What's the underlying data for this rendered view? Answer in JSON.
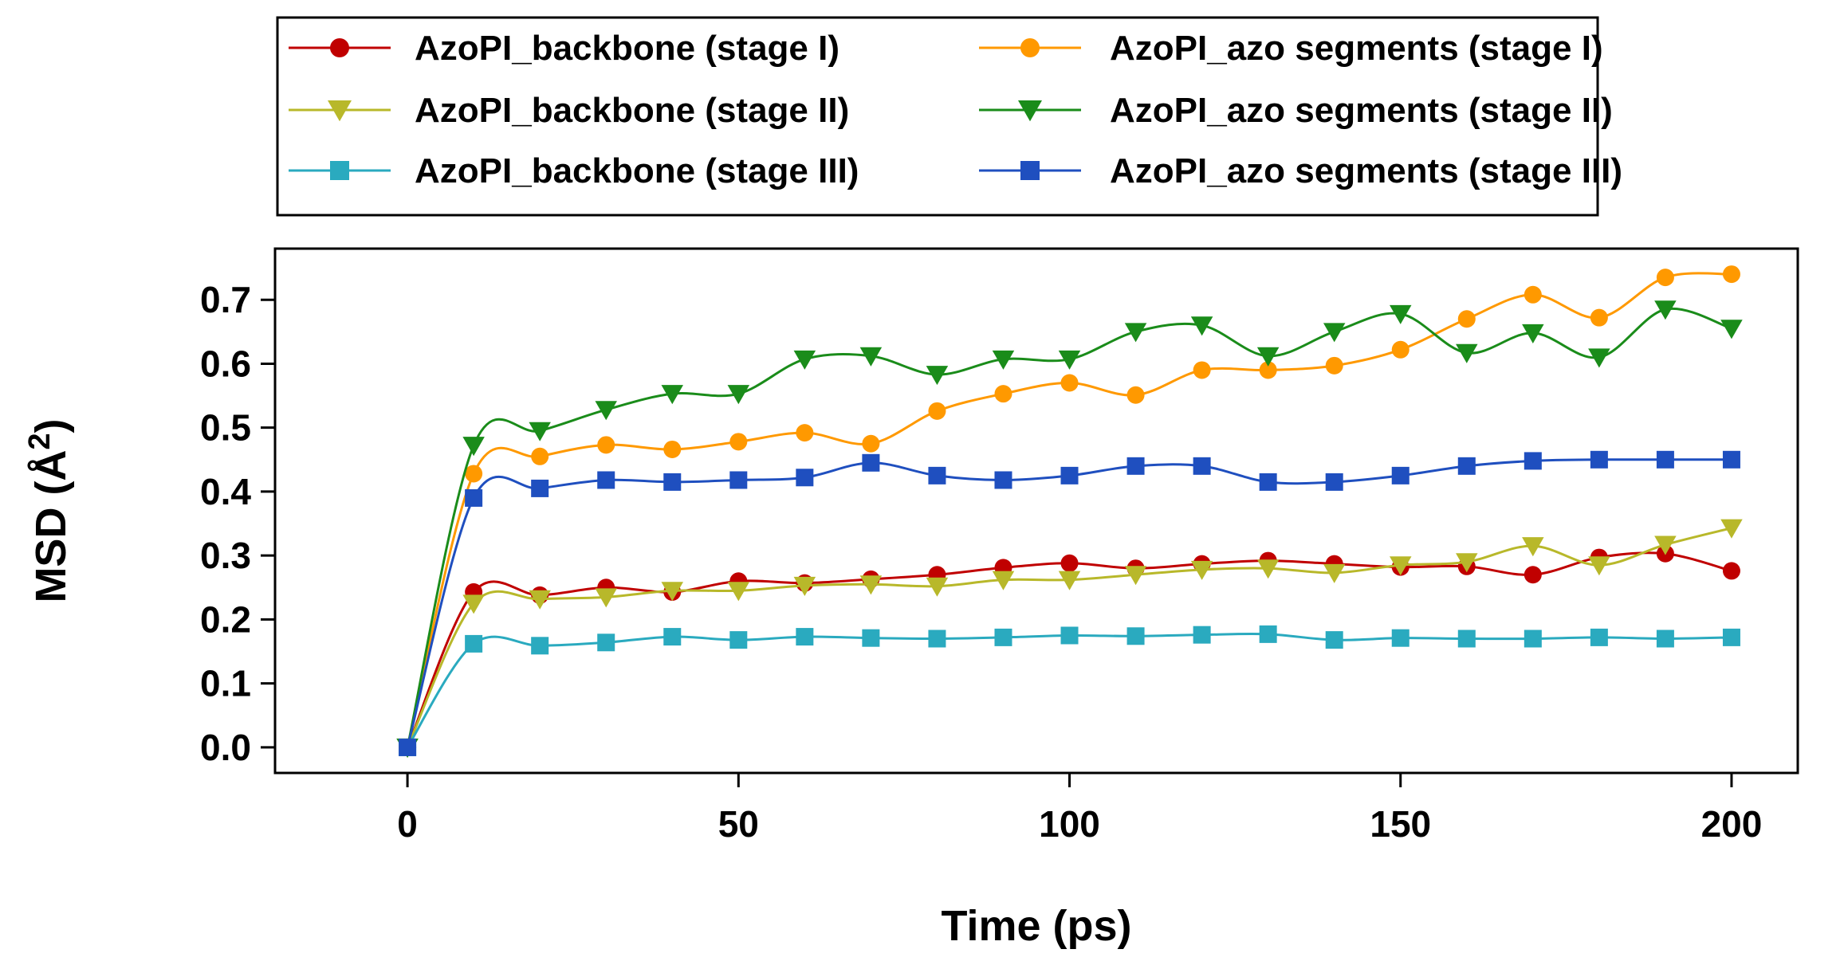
{
  "chart_data": {
    "type": "line",
    "title": "",
    "xlabel": "Time (ps)",
    "ylabel_main": "MSD (Å",
    "ylabel_sup": "2",
    "ylabel_close": ")",
    "xlim": [
      -20,
      210
    ],
    "ylim": [
      -0.04,
      0.78
    ],
    "xticks": [
      0,
      50,
      100,
      150,
      200
    ],
    "xtick_labels": [
      "0",
      "50",
      "100",
      "150",
      "200"
    ],
    "yticks": [
      0.0,
      0.1,
      0.2,
      0.3,
      0.4,
      0.5,
      0.6,
      0.7
    ],
    "ytick_labels": [
      "0.0",
      "0.1",
      "0.2",
      "0.3",
      "0.4",
      "0.5",
      "0.6",
      "0.7"
    ],
    "grid": false,
    "legend_position": "top, above plot, two columns",
    "x": [
      0,
      10,
      20,
      30,
      40,
      50,
      60,
      70,
      80,
      90,
      100,
      110,
      120,
      130,
      140,
      150,
      160,
      170,
      180,
      190,
      200
    ],
    "series": [
      {
        "name": "AzoPI_backbone (stage I)",
        "color": "#c00000",
        "marker": "circle",
        "values": [
          0.0,
          0.243,
          0.238,
          0.25,
          0.243,
          0.26,
          0.257,
          0.263,
          0.27,
          0.281,
          0.288,
          0.28,
          0.287,
          0.292,
          0.287,
          0.282,
          0.283,
          0.27,
          0.297,
          0.303,
          0.276
        ]
      },
      {
        "name": "AzoPI_backbone (stage II)",
        "color": "#b8b82a",
        "marker": "triangle-down",
        "values": [
          0.0,
          0.225,
          0.232,
          0.235,
          0.245,
          0.245,
          0.253,
          0.255,
          0.252,
          0.262,
          0.262,
          0.27,
          0.278,
          0.28,
          0.273,
          0.285,
          0.29,
          0.315,
          0.285,
          0.317,
          0.343
        ]
      },
      {
        "name": "AzoPI_backbone (stage III)",
        "color": "#2aaabf",
        "marker": "square",
        "values": [
          0.0,
          0.162,
          0.159,
          0.164,
          0.173,
          0.168,
          0.173,
          0.171,
          0.17,
          0.172,
          0.175,
          0.174,
          0.176,
          0.177,
          0.168,
          0.171,
          0.17,
          0.17,
          0.172,
          0.17,
          0.172
        ]
      },
      {
        "name": "AzoPI_azo segments (stage I)",
        "color": "#ff9900",
        "marker": "circle",
        "values": [
          0.0,
          0.428,
          0.455,
          0.473,
          0.466,
          0.478,
          0.492,
          0.475,
          0.526,
          0.553,
          0.57,
          0.551,
          0.59,
          0.59,
          0.597,
          0.622,
          0.67,
          0.708,
          0.672,
          0.735,
          0.74
        ]
      },
      {
        "name": "AzoPI_azo segments (stage II)",
        "color": "#1a8c1a",
        "marker": "triangle-down",
        "values": [
          0.0,
          0.472,
          0.495,
          0.528,
          0.553,
          0.553,
          0.607,
          0.612,
          0.583,
          0.607,
          0.607,
          0.65,
          0.66,
          0.612,
          0.65,
          0.678,
          0.617,
          0.648,
          0.61,
          0.685,
          0.655
        ]
      },
      {
        "name": "AzoPI_azo segments (stage III)",
        "color": "#1f4fbf",
        "marker": "square",
        "values": [
          0.0,
          0.39,
          0.405,
          0.418,
          0.415,
          0.418,
          0.422,
          0.445,
          0.425,
          0.418,
          0.425,
          0.44,
          0.44,
          0.415,
          0.415,
          0.425,
          0.44,
          0.448,
          0.45,
          0.45,
          0.45
        ]
      }
    ]
  }
}
